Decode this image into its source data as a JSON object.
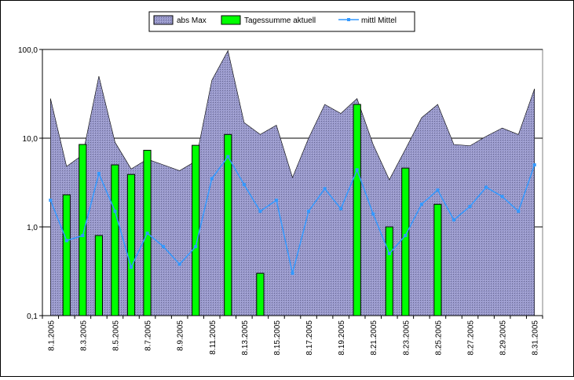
{
  "chart_data": {
    "type": "bar",
    "y_scale": "log",
    "ylim": [
      0.1,
      100
    ],
    "y_ticks": [
      "0,1",
      "1,0",
      "10,0",
      "100,0"
    ],
    "grid": "horizontal major lines",
    "legend_position": "top-center",
    "x": [
      "8.1.2005",
      "8.2.2005",
      "8.3.2005",
      "8.4.2005",
      "8.5.2005",
      "8.6.2005",
      "8.7.2005",
      "8.8.2005",
      "8.9.2005",
      "8.10.2005",
      "8.11.2005",
      "8.12.2005",
      "8.13.2005",
      "8.14.2005",
      "8.15.2005",
      "8.16.2005",
      "8.17.2005",
      "8.18.2005",
      "8.19.2005",
      "8.20.2005",
      "8.21.2005",
      "8.22.2005",
      "8.23.2005",
      "8.24.2005",
      "8.25.2005",
      "8.26.2005",
      "8.27.2005",
      "8.28.2005",
      "8.29.2005",
      "8.30.2005",
      "8.31.2005"
    ],
    "x_tick_labels": [
      "8.1.2005",
      "",
      "8.3.2005",
      "",
      "8.5.2005",
      "",
      "8.7.2005",
      "",
      "8.9.2005",
      "",
      "8.11.2005",
      "",
      "8.13.2005",
      "",
      "8.15.2005",
      "",
      "8.17.2005",
      "",
      "8.19.2005",
      "",
      "8.21.2005",
      "",
      "8.23.2005",
      "",
      "8.25.2005",
      "",
      "8.27.2005",
      "",
      "8.29.2005",
      "",
      "8.31.2005"
    ],
    "series": [
      {
        "name": "abs Max",
        "kind": "area",
        "color": "#9999cc",
        "values": [
          28,
          4.8,
          6.5,
          50,
          9,
          4.5,
          5.8,
          5.0,
          4.3,
          5.5,
          45,
          97,
          15,
          11,
          14,
          3.6,
          10,
          24,
          19,
          28,
          8.5,
          3.4,
          7.5,
          17,
          24,
          8.5,
          8.2,
          10.5,
          13,
          11,
          36
        ]
      },
      {
        "name": "Tagessumme aktuell",
        "kind": "bar",
        "color": "#00ff00",
        "values": [
          null,
          2.3,
          8.5,
          0.8,
          5.0,
          3.9,
          7.3,
          null,
          null,
          8.3,
          null,
          11,
          null,
          0.3,
          null,
          null,
          null,
          null,
          null,
          24,
          null,
          1.0,
          4.6,
          null,
          1.8,
          null,
          null,
          null,
          null,
          null,
          null
        ]
      },
      {
        "name": "mittl Mittel",
        "kind": "line",
        "color": "#3399ff",
        "values": [
          2.0,
          0.7,
          0.8,
          4.0,
          1.5,
          0.35,
          0.85,
          0.6,
          0.38,
          0.6,
          3.5,
          6.2,
          3.0,
          1.5,
          2.0,
          0.3,
          1.5,
          2.7,
          1.6,
          4.4,
          1.4,
          0.5,
          0.8,
          1.8,
          2.6,
          1.2,
          1.7,
          2.8,
          2.2,
          1.5,
          5.0
        ]
      }
    ]
  }
}
